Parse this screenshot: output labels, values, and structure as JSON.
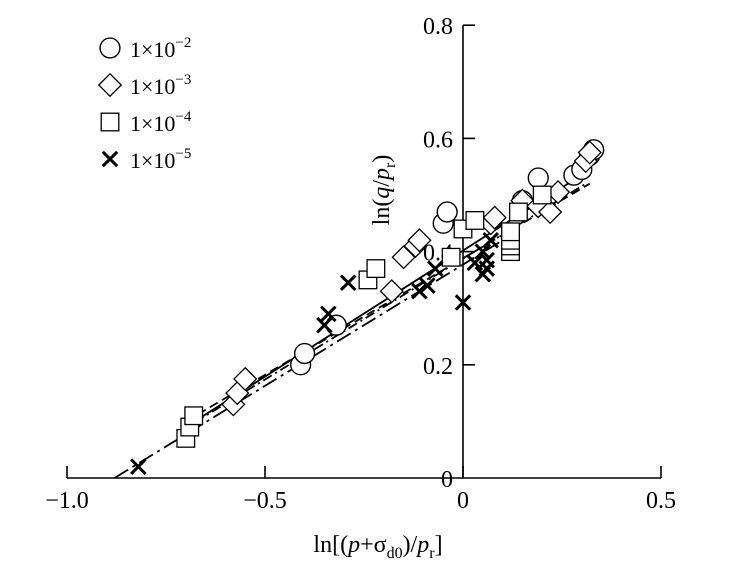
{
  "chart_data": {
    "type": "scatter",
    "title": "",
    "xlabel": {
      "pre": "ln[(",
      "var1": "p",
      "plus": "+",
      "sigma": "σ",
      "sigma_sub": "d0",
      "slash": ")/",
      "var2": "p",
      "var2_sub": "r",
      "post": "]"
    },
    "ylabel": {
      "pre": "ln(",
      "var1": "q",
      "slash": "/",
      "var2": "p",
      "var2_sub": "r",
      "post": ")"
    },
    "xlim": [
      -1.0,
      0.5
    ],
    "ylim": [
      0,
      0.8
    ],
    "x_ticks": [
      -1.0,
      -0.5,
      0,
      0.5
    ],
    "x_tick_labels": [
      "−1.0",
      "−0.5",
      "0",
      "0.5"
    ],
    "y_ticks": [
      0,
      0.2,
      0.4,
      0.6,
      0.8
    ],
    "y_tick_labels": [
      "0",
      "0.2",
      "0.4",
      "0.6",
      "0.8"
    ],
    "grid": false,
    "legend_position": "top-left",
    "series": [
      {
        "name": "1×10",
        "exponent": "−2",
        "marker": "circle",
        "line_style": "solid",
        "fit": {
          "x": [
            -0.7,
            0.31
          ],
          "y": [
            0.09,
            0.54
          ]
        },
        "x": [
          -0.41,
          -0.4,
          -0.32,
          -0.05,
          -0.04,
          0.15,
          0.19,
          0.28,
          0.3,
          0.32,
          0.33
        ],
        "y": [
          0.2,
          0.22,
          0.27,
          0.45,
          0.47,
          0.49,
          0.53,
          0.535,
          0.545,
          0.57,
          0.58
        ]
      },
      {
        "name": "1×10",
        "exponent": "−3",
        "marker": "diamond",
        "line_style": "dashed",
        "fit": {
          "x": [
            -0.7,
            0.32
          ],
          "y": [
            0.1,
            0.52
          ]
        },
        "x": [
          -0.58,
          -0.57,
          -0.55,
          -0.18,
          -0.15,
          -0.12,
          -0.11,
          0.07,
          0.08,
          0.15,
          0.19,
          0.22,
          0.24,
          0.31,
          0.32
        ],
        "y": [
          0.13,
          0.15,
          0.175,
          0.33,
          0.39,
          0.41,
          0.42,
          0.45,
          0.46,
          0.49,
          0.48,
          0.47,
          0.505,
          0.56,
          0.575
        ]
      },
      {
        "name": "1×10",
        "exponent": "−4",
        "marker": "square",
        "line_style": "dash-dot",
        "fit": {
          "x": [
            -0.72,
            0.31
          ],
          "y": [
            0.08,
            0.52
          ]
        },
        "x": [
          -0.7,
          -0.69,
          -0.68,
          -0.24,
          -0.22,
          -0.03,
          0.0,
          0.03,
          0.12,
          0.12,
          0.12,
          0.12,
          0.14,
          0.2
        ],
        "y": [
          0.07,
          0.09,
          0.11,
          0.35,
          0.37,
          0.39,
          0.44,
          0.455,
          0.4,
          0.41,
          0.42,
          0.435,
          0.47,
          0.5
        ]
      },
      {
        "name": "1×10",
        "exponent": "−5",
        "marker": "x",
        "line_style": "long-dash-dot",
        "fit": {
          "x": [
            -0.88,
            0.1
          ],
          "y": [
            0.0,
            0.42
          ]
        },
        "x": [
          -0.82,
          -0.35,
          -0.34,
          -0.29,
          -0.11,
          -0.09,
          -0.07,
          0.0,
          0.03,
          0.05,
          0.05,
          0.06,
          0.06,
          0.07
        ],
        "y": [
          0.02,
          0.27,
          0.29,
          0.345,
          0.33,
          0.34,
          0.37,
          0.31,
          0.38,
          0.36,
          0.4,
          0.37,
          0.385,
          0.42
        ]
      }
    ]
  }
}
